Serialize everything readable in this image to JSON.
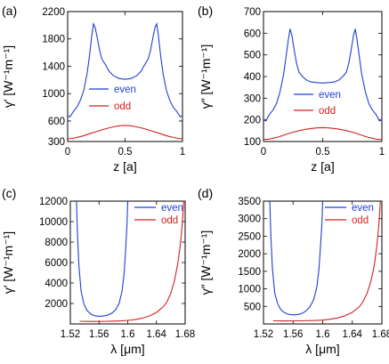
{
  "chart_data": [
    {
      "id": "a",
      "panel_label": "(a)",
      "type": "line",
      "xlabel": "z [a]",
      "ylabel": "γ′ [W⁻¹m⁻¹]",
      "xlim": [
        0,
        1
      ],
      "ylim": [
        300,
        2200
      ],
      "xticks": [
        0,
        0.5,
        1
      ],
      "xtick_labels": [
        "0",
        "0.5",
        "1"
      ],
      "yticks": [
        300,
        600,
        1000,
        1400,
        1800,
        2200
      ],
      "ytick_labels": [
        "300",
        "600",
        "1000",
        "1400",
        "1800",
        "2200"
      ],
      "legend_position": "center",
      "series": [
        {
          "name": "even",
          "color": "#1f3fd6",
          "points": [
            [
              0,
              680
            ],
            [
              0.02,
              660
            ],
            [
              0.05,
              740
            ],
            [
              0.08,
              800
            ],
            [
              0.11,
              900
            ],
            [
              0.14,
              1050
            ],
            [
              0.17,
              1300
            ],
            [
              0.19,
              1550
            ],
            [
              0.21,
              1850
            ],
            [
              0.225,
              2020
            ],
            [
              0.24,
              1960
            ],
            [
              0.26,
              1800
            ],
            [
              0.28,
              1620
            ],
            [
              0.3,
              1500
            ],
            [
              0.33,
              1420
            ],
            [
              0.36,
              1330
            ],
            [
              0.4,
              1260
            ],
            [
              0.45,
              1220
            ],
            [
              0.5,
              1210
            ],
            [
              0.55,
              1220
            ],
            [
              0.6,
              1260
            ],
            [
              0.64,
              1330
            ],
            [
              0.67,
              1420
            ],
            [
              0.7,
              1500
            ],
            [
              0.72,
              1620
            ],
            [
              0.74,
              1800
            ],
            [
              0.76,
              1960
            ],
            [
              0.775,
              2020
            ],
            [
              0.79,
              1850
            ],
            [
              0.81,
              1550
            ],
            [
              0.83,
              1300
            ],
            [
              0.86,
              1050
            ],
            [
              0.89,
              900
            ],
            [
              0.92,
              800
            ],
            [
              0.95,
              740
            ],
            [
              0.98,
              660
            ],
            [
              1,
              680
            ]
          ]
        },
        {
          "name": "odd",
          "color": "#d42020",
          "points": [
            [
              0,
              340
            ],
            [
              0.04,
              345
            ],
            [
              0.08,
              360
            ],
            [
              0.12,
              375
            ],
            [
              0.16,
              395
            ],
            [
              0.2,
              420
            ],
            [
              0.25,
              445
            ],
            [
              0.3,
              470
            ],
            [
              0.35,
              495
            ],
            [
              0.4,
              515
            ],
            [
              0.45,
              530
            ],
            [
              0.5,
              535
            ],
            [
              0.55,
              530
            ],
            [
              0.6,
              515
            ],
            [
              0.65,
              495
            ],
            [
              0.7,
              470
            ],
            [
              0.75,
              445
            ],
            [
              0.8,
              420
            ],
            [
              0.84,
              395
            ],
            [
              0.88,
              375
            ],
            [
              0.92,
              360
            ],
            [
              0.96,
              345
            ],
            [
              1,
              340
            ]
          ]
        }
      ]
    },
    {
      "id": "b",
      "panel_label": "(b)",
      "type": "line",
      "xlabel": "z [a]",
      "ylabel": "γ″ [W⁻¹m⁻¹]",
      "xlim": [
        0,
        1
      ],
      "ylim": [
        100,
        700
      ],
      "xticks": [
        0,
        0.5,
        1
      ],
      "xtick_labels": [
        "0",
        "0.5",
        "1"
      ],
      "yticks": [
        100,
        200,
        300,
        400,
        500,
        600,
        700
      ],
      "ytick_labels": [
        "100",
        "200",
        "300",
        "400",
        "500",
        "600",
        "700"
      ],
      "legend_position": "center-right",
      "series": [
        {
          "name": "even",
          "color": "#1f3fd6",
          "points": [
            [
              0,
              200
            ],
            [
              0.02,
              195
            ],
            [
              0.05,
              225
            ],
            [
              0.08,
              245
            ],
            [
              0.11,
              275
            ],
            [
              0.14,
              330
            ],
            [
              0.17,
              410
            ],
            [
              0.19,
              490
            ],
            [
              0.21,
              570
            ],
            [
              0.225,
              620
            ],
            [
              0.24,
              590
            ],
            [
              0.26,
              520
            ],
            [
              0.28,
              460
            ],
            [
              0.3,
              420
            ],
            [
              0.33,
              400
            ],
            [
              0.36,
              385
            ],
            [
              0.4,
              375
            ],
            [
              0.45,
              372
            ],
            [
              0.5,
              370
            ],
            [
              0.55,
              372
            ],
            [
              0.6,
              375
            ],
            [
              0.64,
              385
            ],
            [
              0.67,
              400
            ],
            [
              0.7,
              420
            ],
            [
              0.72,
              460
            ],
            [
              0.74,
              520
            ],
            [
              0.76,
              590
            ],
            [
              0.775,
              620
            ],
            [
              0.79,
              570
            ],
            [
              0.81,
              490
            ],
            [
              0.83,
              410
            ],
            [
              0.86,
              330
            ],
            [
              0.89,
              275
            ],
            [
              0.92,
              245
            ],
            [
              0.95,
              225
            ],
            [
              0.98,
              195
            ],
            [
              1,
              200
            ]
          ]
        },
        {
          "name": "odd",
          "color": "#d42020",
          "points": [
            [
              0,
              110
            ],
            [
              0.04,
              110
            ],
            [
              0.08,
              115
            ],
            [
              0.12,
              120
            ],
            [
              0.16,
              127
            ],
            [
              0.2,
              135
            ],
            [
              0.25,
              143
            ],
            [
              0.3,
              150
            ],
            [
              0.35,
              156
            ],
            [
              0.4,
              160
            ],
            [
              0.45,
              163
            ],
            [
              0.5,
              164
            ],
            [
              0.55,
              163
            ],
            [
              0.6,
              160
            ],
            [
              0.65,
              156
            ],
            [
              0.7,
              150
            ],
            [
              0.75,
              143
            ],
            [
              0.8,
              135
            ],
            [
              0.84,
              127
            ],
            [
              0.88,
              120
            ],
            [
              0.92,
              115
            ],
            [
              0.96,
              110
            ],
            [
              1,
              110
            ]
          ]
        }
      ]
    },
    {
      "id": "c",
      "panel_label": "(c)",
      "type": "line",
      "xlabel": "λ [μm]",
      "ylabel": "γ′ [W⁻¹m⁻¹]",
      "xlim": [
        1.52,
        1.68
      ],
      "ylim": [
        0,
        12000
      ],
      "xticks": [
        1.52,
        1.56,
        1.6,
        1.64,
        1.68
      ],
      "xtick_labels": [
        "1.52",
        "1.56",
        "1.6",
        "1.64",
        "1.68"
      ],
      "yticks": [
        2000,
        4000,
        6000,
        8000,
        10000,
        12000
      ],
      "ytick_labels": [
        "2000",
        "4000",
        "6000",
        "8000",
        "10000",
        "12000"
      ],
      "legend_position": "top-right",
      "series": [
        {
          "name": "even",
          "color": "#1f3fd6",
          "points": [
            [
              1.5285,
              12000
            ],
            [
              1.53,
              8600
            ],
            [
              1.532,
              5600
            ],
            [
              1.535,
              3200
            ],
            [
              1.539,
              1950
            ],
            [
              1.543,
              1350
            ],
            [
              1.548,
              1000
            ],
            [
              1.553,
              820
            ],
            [
              1.558,
              760
            ],
            [
              1.563,
              760
            ],
            [
              1.568,
              800
            ],
            [
              1.573,
              890
            ],
            [
              1.578,
              1060
            ],
            [
              1.583,
              1380
            ],
            [
              1.588,
              2000
            ],
            [
              1.592,
              3200
            ],
            [
              1.595,
              5000
            ],
            [
              1.597,
              7200
            ],
            [
              1.599,
              9800
            ],
            [
              1.6,
              12000
            ]
          ]
        },
        {
          "name": "odd",
          "color": "#d42020",
          "points": [
            [
              1.533,
              260
            ],
            [
              1.55,
              240
            ],
            [
              1.57,
              250
            ],
            [
              1.59,
              300
            ],
            [
              1.6,
              350
            ],
            [
              1.61,
              430
            ],
            [
              1.62,
              560
            ],
            [
              1.63,
              770
            ],
            [
              1.64,
              1120
            ],
            [
              1.65,
              1700
            ],
            [
              1.655,
              2200
            ],
            [
              1.66,
              3000
            ],
            [
              1.665,
              4200
            ],
            [
              1.67,
              6000
            ],
            [
              1.673,
              7600
            ],
            [
              1.676,
              9800
            ],
            [
              1.678,
              12000
            ]
          ]
        }
      ]
    },
    {
      "id": "d",
      "panel_label": "(d)",
      "type": "line",
      "xlabel": "λ [μm]",
      "ylabel": "γ″ [W⁻¹m⁻¹]",
      "xlim": [
        1.52,
        1.68
      ],
      "ylim": [
        0,
        3500
      ],
      "xticks": [
        1.52,
        1.56,
        1.6,
        1.64,
        1.68
      ],
      "xtick_labels": [
        "1.52",
        "1.56",
        "1.6",
        "1.64",
        "1.68"
      ],
      "yticks": [
        500,
        1000,
        1500,
        2000,
        2500,
        3000,
        3500
      ],
      "ytick_labels": [
        "500",
        "1000",
        "1500",
        "2000",
        "2500",
        "3000",
        "3500"
      ],
      "legend_position": "top-right",
      "series": [
        {
          "name": "even",
          "color": "#1f3fd6",
          "points": [
            [
              1.5285,
              3500
            ],
            [
              1.53,
              2500
            ],
            [
              1.532,
              1600
            ],
            [
              1.535,
              900
            ],
            [
              1.539,
              580
            ],
            [
              1.543,
              420
            ],
            [
              1.548,
              330
            ],
            [
              1.553,
              280
            ],
            [
              1.558,
              260
            ],
            [
              1.563,
              260
            ],
            [
              1.568,
              275
            ],
            [
              1.573,
              310
            ],
            [
              1.578,
              380
            ],
            [
              1.583,
              500
            ],
            [
              1.588,
              700
            ],
            [
              1.592,
              1050
            ],
            [
              1.595,
              1550
            ],
            [
              1.597,
              2200
            ],
            [
              1.599,
              2900
            ],
            [
              1.6,
              3500
            ]
          ]
        },
        {
          "name": "odd",
          "color": "#d42020",
          "points": [
            [
              1.533,
              90
            ],
            [
              1.55,
              85
            ],
            [
              1.57,
              88
            ],
            [
              1.59,
              100
            ],
            [
              1.6,
              110
            ],
            [
              1.61,
              135
            ],
            [
              1.62,
              170
            ],
            [
              1.63,
              230
            ],
            [
              1.64,
              330
            ],
            [
              1.65,
              500
            ],
            [
              1.655,
              650
            ],
            [
              1.66,
              880
            ],
            [
              1.665,
              1200
            ],
            [
              1.67,
              1700
            ],
            [
              1.673,
              2200
            ],
            [
              1.676,
              2850
            ],
            [
              1.678,
              3500
            ]
          ]
        }
      ]
    }
  ]
}
